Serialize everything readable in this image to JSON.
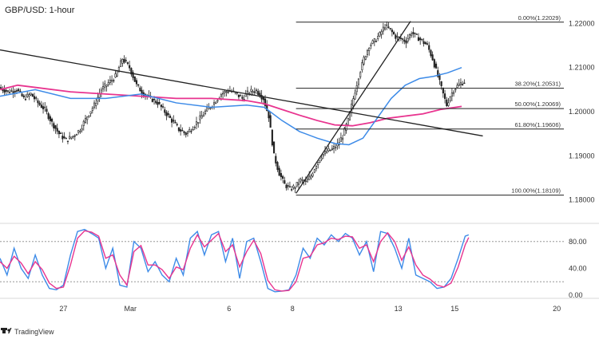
{
  "header": {
    "title": "GBP/USD: 1-hour"
  },
  "footer": {
    "brand": "TradingView"
  },
  "colors": {
    "candle": "#222222",
    "ma_fast": "#3d8be8",
    "ma_slow": "#e8348f",
    "stoch_k": "#3d8be8",
    "stoch_d": "#e8348f",
    "fib_line": "#222222",
    "trend_line": "#222222"
  },
  "chart_data": [
    {
      "type": "candlestick",
      "title": "GBP/USD: 1-hour",
      "xlabel": "",
      "ylabel": "",
      "ylim": [
        1.1765,
        1.2235
      ],
      "x_ticks": [
        "27",
        "Mar",
        "6",
        "8",
        "13",
        "15",
        "20"
      ],
      "y_ticks": [
        1.18,
        1.19,
        1.2,
        1.21,
        1.22
      ],
      "y_tick_labels": [
        "1.18000",
        "1.19000",
        "1.20000",
        "1.21000",
        "1.22000"
      ],
      "grid": false,
      "price_path": [
        [
          0,
          1.2055
        ],
        [
          5,
          1.2045
        ],
        [
          10,
          1.205
        ],
        [
          14,
          1.203
        ],
        [
          18,
          1.204
        ],
        [
          22,
          1.202
        ],
        [
          26,
          1.2005
        ],
        [
          30,
          1.1975
        ],
        [
          34,
          1.195
        ],
        [
          38,
          1.1935
        ],
        [
          42,
          1.1945
        ],
        [
          46,
          1.196
        ],
        [
          50,
          1.199
        ],
        [
          54,
          1.2015
        ],
        [
          58,
          1.205
        ],
        [
          62,
          1.2065
        ],
        [
          66,
          1.208
        ],
        [
          70,
          1.212
        ],
        [
          74,
          1.21
        ],
        [
          78,
          1.206
        ],
        [
          82,
          1.204
        ],
        [
          86,
          1.203
        ],
        [
          90,
          1.202
        ],
        [
          94,
          1.2
        ],
        [
          98,
          1.198
        ],
        [
          102,
          1.196
        ],
        [
          106,
          1.195
        ],
        [
          110,
          1.1965
        ],
        [
          114,
          1.1985
        ],
        [
          118,
          1.2005
        ],
        [
          122,
          1.202
        ],
        [
          126,
          1.204
        ],
        [
          130,
          1.2048
        ],
        [
          134,
          1.2042
        ],
        [
          138,
          1.203
        ],
        [
          142,
          1.2045
        ],
        [
          146,
          1.2048
        ],
        [
          150,
          1.203
        ],
        [
          153,
          1.199
        ],
        [
          156,
          1.19
        ],
        [
          159,
          1.186
        ],
        [
          162,
          1.1835
        ],
        [
          165,
          1.1825
        ],
        [
          168,
          1.183
        ],
        [
          171,
          1.1845
        ],
        [
          174,
          1.184
        ],
        [
          177,
          1.1855
        ],
        [
          180,
          1.188
        ],
        [
          183,
          1.19
        ],
        [
          186,
          1.191
        ],
        [
          189,
          1.1915
        ],
        [
          192,
          1.1925
        ],
        [
          195,
          1.1945
        ],
        [
          198,
          1.198
        ],
        [
          201,
          1.203
        ],
        [
          204,
          1.208
        ],
        [
          207,
          1.212
        ],
        [
          210,
          1.215
        ],
        [
          213,
          1.216
        ],
        [
          216,
          1.2175
        ],
        [
          219,
          1.2195
        ],
        [
          222,
          1.2185
        ],
        [
          225,
          1.217
        ],
        [
          228,
          1.2165
        ],
        [
          231,
          1.216
        ],
        [
          234,
          1.218
        ],
        [
          237,
          1.217
        ],
        [
          240,
          1.216
        ],
        [
          243,
          1.215
        ],
        [
          246,
          1.212
        ],
        [
          249,
          1.208
        ],
        [
          252,
          1.204
        ],
        [
          254,
          1.2015
        ],
        [
          256,
          1.2035
        ],
        [
          258,
          1.205
        ],
        [
          260,
          1.2058
        ],
        [
          262,
          1.2064
        ],
        [
          264,
          1.2068
        ]
      ],
      "ma_fast": [
        [
          0,
          1.2035
        ],
        [
          20,
          1.205
        ],
        [
          40,
          1.203
        ],
        [
          60,
          1.203
        ],
        [
          80,
          1.204
        ],
        [
          100,
          1.202
        ],
        [
          120,
          1.201
        ],
        [
          140,
          1.2015
        ],
        [
          150,
          1.201
        ],
        [
          160,
          1.198
        ],
        [
          170,
          1.1955
        ],
        [
          180,
          1.194
        ],
        [
          190,
          1.1928
        ],
        [
          198,
          1.1925
        ],
        [
          206,
          1.194
        ],
        [
          214,
          1.1985
        ],
        [
          222,
          1.203
        ],
        [
          230,
          1.206
        ],
        [
          238,
          1.2075
        ],
        [
          246,
          1.208
        ],
        [
          254,
          1.2088
        ],
        [
          262,
          1.21
        ]
      ],
      "ma_slow": [
        [
          0,
          1.205
        ],
        [
          10,
          1.206
        ],
        [
          20,
          1.2055
        ],
        [
          40,
          1.2045
        ],
        [
          60,
          1.204
        ],
        [
          80,
          1.2035
        ],
        [
          100,
          1.203
        ],
        [
          120,
          1.203
        ],
        [
          140,
          1.2025
        ],
        [
          150,
          1.2018
        ],
        [
          160,
          1.2005
        ],
        [
          170,
          1.1992
        ],
        [
          180,
          1.198
        ],
        [
          190,
          1.197
        ],
        [
          200,
          1.1968
        ],
        [
          210,
          1.1975
        ],
        [
          220,
          1.1985
        ],
        [
          230,
          1.199
        ],
        [
          240,
          1.1995
        ],
        [
          250,
          1.2005
        ],
        [
          262,
          1.2012
        ]
      ],
      "trend_lines": [
        {
          "from": [
            0,
            1.214
          ],
          "to": [
            274,
            1.1945
          ]
        },
        {
          "from": [
            168,
            1.1815
          ],
          "to": [
            233,
            1.2205
          ]
        }
      ],
      "fib_levels": [
        {
          "label": "0.00%(1.22029)",
          "value": 1.22029
        },
        {
          "label": "38.20%(1.20531)",
          "value": 1.20531
        },
        {
          "label": "50.00%(1.20069)",
          "value": 1.20069
        },
        {
          "label": "61.80%(1.19606)",
          "value": 1.19606
        },
        {
          "label": "100.00%(1.18109)",
          "value": 1.18109
        }
      ],
      "fib_x_range": [
        168,
        320
      ]
    },
    {
      "type": "line",
      "title": "",
      "ylim": [
        0,
        100
      ],
      "y_ticks": [
        0,
        40,
        80
      ],
      "y_tick_labels": [
        "0.00",
        "40.00",
        "80.00"
      ],
      "reference_lines": [
        80,
        20
      ],
      "series": [
        {
          "key": "k",
          "values": [
            [
              0,
              55
            ],
            [
              4,
              30
            ],
            [
              8,
              70
            ],
            [
              12,
              40
            ],
            [
              16,
              25
            ],
            [
              20,
              60
            ],
            [
              24,
              30
            ],
            [
              28,
              10
            ],
            [
              32,
              8
            ],
            [
              36,
              15
            ],
            [
              40,
              60
            ],
            [
              44,
              95
            ],
            [
              48,
              98
            ],
            [
              52,
              92
            ],
            [
              56,
              85
            ],
            [
              60,
              40
            ],
            [
              64,
              70
            ],
            [
              68,
              15
            ],
            [
              72,
              12
            ],
            [
              76,
              80
            ],
            [
              80,
              70
            ],
            [
              84,
              35
            ],
            [
              88,
              50
            ],
            [
              92,
              30
            ],
            [
              96,
              20
            ],
            [
              100,
              55
            ],
            [
              104,
              30
            ],
            [
              108,
              85
            ],
            [
              112,
              95
            ],
            [
              116,
              60
            ],
            [
              120,
              90
            ],
            [
              124,
              95
            ],
            [
              128,
              50
            ],
            [
              132,
              85
            ],
            [
              136,
              25
            ],
            [
              140,
              80
            ],
            [
              144,
              85
            ],
            [
              148,
              50
            ],
            [
              152,
              10
            ],
            [
              156,
              5
            ],
            [
              160,
              6
            ],
            [
              164,
              8
            ],
            [
              168,
              30
            ],
            [
              172,
              70
            ],
            [
              176,
              55
            ],
            [
              180,
              85
            ],
            [
              184,
              75
            ],
            [
              188,
              90
            ],
            [
              192,
              80
            ],
            [
              196,
              92
            ],
            [
              200,
              85
            ],
            [
              204,
              60
            ],
            [
              208,
              80
            ],
            [
              212,
              35
            ],
            [
              216,
              95
            ],
            [
              220,
              92
            ],
            [
              224,
              70
            ],
            [
              228,
              40
            ],
            [
              232,
              85
            ],
            [
              236,
              30
            ],
            [
              240,
              25
            ],
            [
              244,
              20
            ],
            [
              248,
              10
            ],
            [
              252,
              12
            ],
            [
              256,
              25
            ],
            [
              260,
              55
            ],
            [
              264,
              88
            ],
            [
              266,
              90
            ]
          ]
        },
        {
          "key": "d",
          "values": [
            [
              0,
              50
            ],
            [
              4,
              40
            ],
            [
              8,
              58
            ],
            [
              12,
              48
            ],
            [
              16,
              32
            ],
            [
              20,
              50
            ],
            [
              24,
              38
            ],
            [
              28,
              18
            ],
            [
              32,
              10
            ],
            [
              36,
              12
            ],
            [
              40,
              45
            ],
            [
              44,
              85
            ],
            [
              48,
              96
            ],
            [
              52,
              94
            ],
            [
              56,
              88
            ],
            [
              60,
              55
            ],
            [
              64,
              60
            ],
            [
              68,
              30
            ],
            [
              72,
              15
            ],
            [
              76,
              65
            ],
            [
              80,
              74
            ],
            [
              84,
              45
            ],
            [
              88,
              45
            ],
            [
              92,
              38
            ],
            [
              96,
              25
            ],
            [
              100,
              42
            ],
            [
              104,
              38
            ],
            [
              108,
              70
            ],
            [
              112,
              90
            ],
            [
              116,
              72
            ],
            [
              120,
              82
            ],
            [
              124,
              92
            ],
            [
              128,
              65
            ],
            [
              132,
              75
            ],
            [
              136,
              42
            ],
            [
              140,
              65
            ],
            [
              144,
              82
            ],
            [
              148,
              62
            ],
            [
              152,
              22
            ],
            [
              156,
              8
            ],
            [
              160,
              6
            ],
            [
              164,
              7
            ],
            [
              168,
              20
            ],
            [
              172,
              55
            ],
            [
              176,
              58
            ],
            [
              180,
              75
            ],
            [
              184,
              78
            ],
            [
              188,
              85
            ],
            [
              192,
              83
            ],
            [
              196,
              88
            ],
            [
              200,
              87
            ],
            [
              204,
              70
            ],
            [
              208,
              75
            ],
            [
              212,
              50
            ],
            [
              216,
              80
            ],
            [
              220,
              93
            ],
            [
              224,
              80
            ],
            [
              228,
              52
            ],
            [
              232,
              72
            ],
            [
              236,
              45
            ],
            [
              240,
              30
            ],
            [
              244,
              24
            ],
            [
              248,
              15
            ],
            [
              252,
              12
            ],
            [
              256,
              18
            ],
            [
              260,
              42
            ],
            [
              264,
              75
            ],
            [
              266,
              86
            ]
          ]
        }
      ]
    }
  ]
}
